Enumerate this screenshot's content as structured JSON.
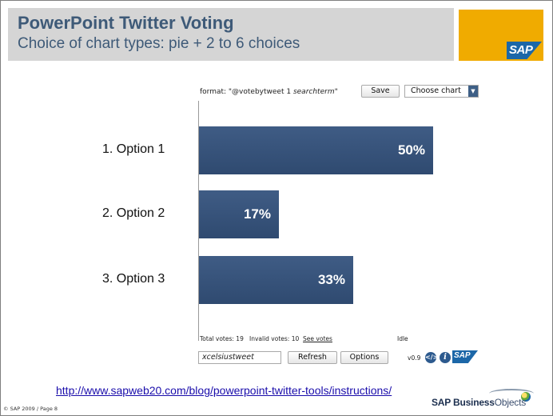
{
  "slide": {
    "title": "PowerPoint Twitter Voting",
    "subtitle": "Choice of chart types: pie + 2 to 6 choices",
    "sap_logo_text": "SAP",
    "link_url": "http://www.sapweb20.com/blog/powerpoint-twitter-tools/instructions/",
    "copyright": "© SAP 2009 / Page 8",
    "brand_bold": "SAP Business",
    "brand_light": "Objects"
  },
  "widget": {
    "format_prefix": "format: \"@votebytweet 1 ",
    "format_term": "searchterm",
    "format_suffix": "\"",
    "save_label": "Save",
    "chart_select": {
      "selected": "Choose chart",
      "arrow_icon": "chevron-down-icon"
    },
    "footer": {
      "total_votes": "Total votes: 19",
      "invalid_votes": "Invalid votes: 10",
      "see_votes": "See votes",
      "status": "Idle"
    },
    "search": {
      "value": "xcelsiustweet"
    },
    "refresh_label": "Refresh",
    "options_label": "Options",
    "version": "v0.9",
    "code_icon_glyph": "</>",
    "info_icon_glyph": "i",
    "mini_sap_text": "SAP"
  },
  "colors": {
    "title": "#3e5a78",
    "title_band": "#d5d5d5",
    "sap_tile": "#f0ab00",
    "bar": "#34507a",
    "sap_blue": "#1c67a8"
  },
  "chart_data": {
    "type": "bar",
    "orientation": "horizontal",
    "categories": [
      "1. Option 1",
      "2. Option 2",
      "3. Option 3"
    ],
    "values": [
      50,
      17,
      33
    ],
    "value_labels": [
      "50%",
      "17%",
      "33%"
    ],
    "xlim": [
      0,
      100
    ],
    "grid": false
  }
}
